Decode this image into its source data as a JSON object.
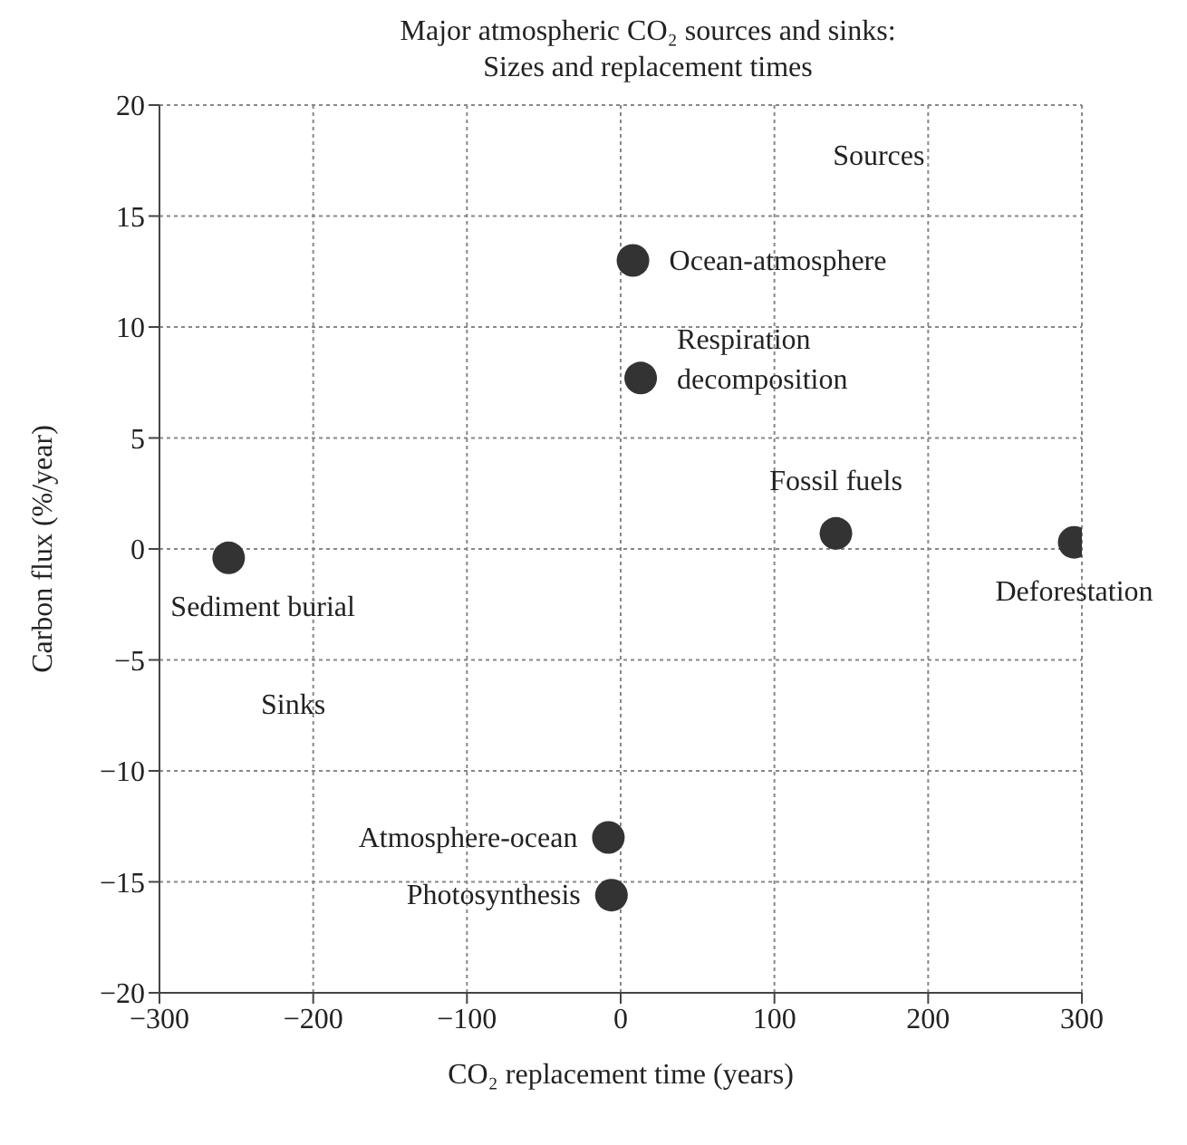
{
  "chart_data": {
    "type": "scatter",
    "title": "Major atmospheric CO₂ sources and sinks:",
    "subtitle": "Sizes and replacement times",
    "xlabel": "CO₂ replacement time (years)",
    "ylabel": "Carbon flux (%/year)",
    "series": [
      {
        "name": "Sediment burial",
        "color": "#333333",
        "x": [
          -255
        ],
        "values": [
          -0.4
        ]
      },
      {
        "name": "Ocean-atmosphere",
        "color": "#333333",
        "x": [
          8
        ],
        "values": [
          13
        ]
      },
      {
        "name": "Respiration decomposition",
        "color": "#333333",
        "x": [
          13
        ],
        "values": [
          7.7
        ]
      },
      {
        "name": "Fossil fuels",
        "color": "#333333",
        "x": [
          140
        ],
        "values": [
          0.7
        ]
      },
      {
        "name": "Deforestation",
        "color": "#333333",
        "x": [
          295
        ],
        "values": [
          0.3
        ]
      },
      {
        "name": "Atmosphere-ocean",
        "color": "#333333",
        "x": [
          -8
        ],
        "values": [
          -13
        ]
      },
      {
        "name": "Photosynthesis",
        "color": "#333333",
        "x": [
          -6
        ],
        "values": [
          -15.6
        ]
      }
    ],
    "annotations": [
      "Sources",
      "Sinks"
    ],
    "xlim": [
      -300,
      300
    ],
    "xticks": [
      -300,
      -200,
      -100,
      0,
      100,
      200,
      300
    ],
    "ylim": [
      -20,
      20
    ],
    "yticks": [
      -20,
      -15,
      -10,
      -5,
      0,
      5,
      10,
      15,
      20
    ],
    "grid": true,
    "marker": "circle"
  }
}
